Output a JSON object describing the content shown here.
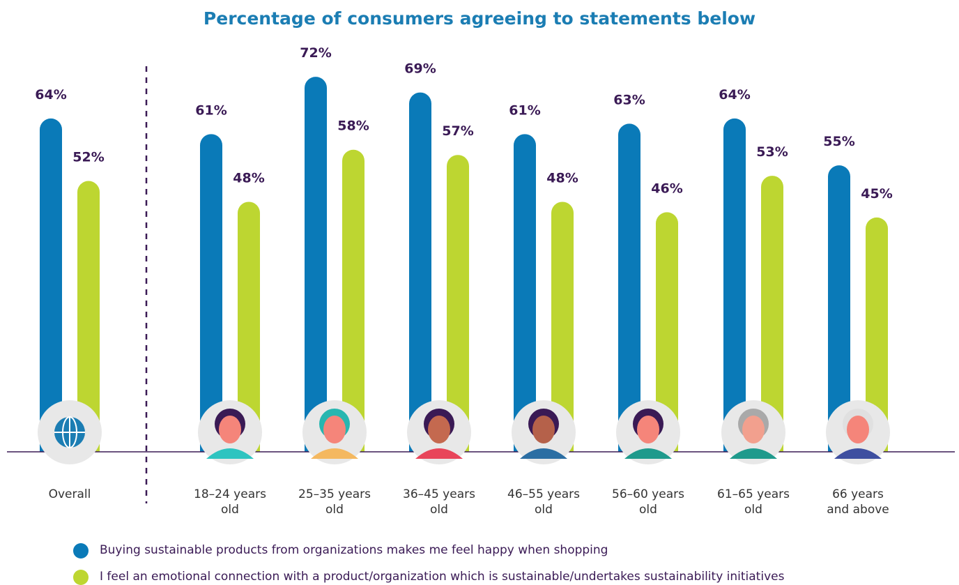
{
  "chart_data": {
    "type": "bar",
    "title": "Percentage of consumers agreeing to statements below",
    "categories": [
      "Overall",
      "18–24 years old",
      "25–35 years old",
      "36–45 years old",
      "46–55 years old",
      "56–60 years old",
      "61–65 years old",
      "66 years and above"
    ],
    "series": [
      {
        "name": "Buying sustainable products from organizations makes me feel happy when shopping",
        "color": "#0a7ab8",
        "values": [
          64,
          61,
          72,
          69,
          61,
          63,
          64,
          55
        ],
        "value_labels": [
          "64%",
          "61%",
          "72%",
          "69%",
          "61%",
          "63%",
          "64%",
          "55%"
        ]
      },
      {
        "name": "I feel an emotional connection with a product/organization which is sustainable/undertakes sustainability initiatives",
        "color": "#bdd631",
        "values": [
          52,
          48,
          58,
          57,
          48,
          46,
          53,
          45
        ],
        "value_labels": [
          "52%",
          "48%",
          "58%",
          "57%",
          "48%",
          "46%",
          "53%",
          "45%"
        ]
      }
    ]
  }
}
